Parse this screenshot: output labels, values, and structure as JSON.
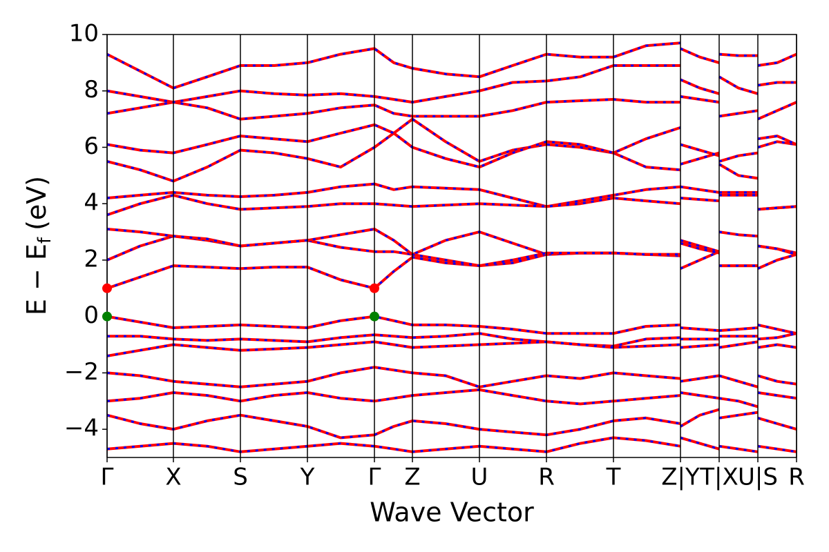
{
  "chart_data": {
    "type": "line",
    "xlabel": "Wave Vector",
    "ylabel": {
      "main": "E − E",
      "sub": "f",
      "unit": "(eV)"
    },
    "xlim": [
      0,
      9.98
    ],
    "ylim": [
      -5,
      10
    ],
    "xticks": [
      {
        "value": 0,
        "label": "Γ"
      },
      {
        "value": 0.96,
        "label": "X"
      },
      {
        "value": 1.93,
        "label": "S"
      },
      {
        "value": 2.9,
        "label": "Y"
      },
      {
        "value": 3.87,
        "label": "Γ"
      },
      {
        "value": 4.42,
        "label": "Z"
      },
      {
        "value": 5.39,
        "label": "U"
      },
      {
        "value": 6.36,
        "label": "R"
      },
      {
        "value": 7.33,
        "label": "T"
      },
      {
        "value": 8.3,
        "label": "Z|Y"
      },
      {
        "value": 8.86,
        "label": "T|X"
      },
      {
        "value": 9.42,
        "label": "U|S"
      },
      {
        "value": 9.98,
        "label": "R"
      }
    ],
    "yticks": [
      {
        "value": -4,
        "label": "−4"
      },
      {
        "value": -2,
        "label": "−2"
      },
      0,
      2,
      4,
      6,
      8,
      10
    ],
    "line_color": "#ff0000",
    "dash_color": "#0000ff",
    "vline_color": "#000000",
    "x": [
      0,
      0.48,
      0.96,
      1.45,
      1.93,
      2.42,
      2.9,
      3.38,
      3.87,
      4.15,
      4.42,
      4.9,
      5.39,
      5.87,
      6.36,
      6.85,
      7.33,
      7.8,
      8.3,
      8.3,
      8.3,
      8.58,
      8.86,
      8.86,
      8.86,
      9.14,
      9.42,
      9.42,
      9.42,
      9.7,
      9.98
    ],
    "series": [
      {
        "values": [
          0,
          -0.2,
          -0.4,
          -0.35,
          -0.3,
          -0.35,
          -0.4,
          -0.15,
          0,
          -0.15,
          -0.3,
          -0.3,
          -0.35,
          -0.45,
          -0.6,
          -0.6,
          -0.6,
          -0.35,
          -0.3,
          null,
          -0.4,
          -0.45,
          -0.5,
          null,
          -0.5,
          -0.45,
          -0.4,
          null,
          -0.3,
          -0.45,
          -0.6
        ]
      },
      {
        "values": [
          -0.7,
          -0.7,
          -0.8,
          -0.85,
          -0.8,
          -0.85,
          -0.9,
          -0.75,
          -0.65,
          -0.7,
          -0.75,
          -0.7,
          -0.6,
          -0.8,
          -0.9,
          -1.0,
          -1.05,
          -0.8,
          -0.75,
          null,
          -0.8,
          -0.8,
          -0.8,
          null,
          -0.7,
          -0.7,
          -0.7,
          null,
          -0.8,
          -0.75,
          -0.6
        ]
      },
      {
        "values": [
          -1.4,
          -1.2,
          -1.0,
          -1.1,
          -1.2,
          -1.15,
          -1.1,
          -1.0,
          -0.9,
          -1.0,
          -1.1,
          -1.05,
          -1.0,
          -0.95,
          -0.9,
          -1.0,
          -1.1,
          -1.05,
          -1.0,
          null,
          -1.1,
          -1.05,
          -1.0,
          null,
          -1.1,
          -1.0,
          -0.9,
          null,
          -1.1,
          -1.0,
          -1.1
        ]
      },
      {
        "values": [
          -2.0,
          -2.1,
          -2.3,
          -2.4,
          -2.5,
          -2.4,
          -2.3,
          -2.0,
          -1.8,
          -1.9,
          -2.0,
          -2.1,
          -2.5,
          -2.3,
          -2.1,
          -2.2,
          -2.0,
          -2.1,
          -2.2,
          null,
          -2.3,
          -2.2,
          -2.1,
          null,
          -2.1,
          -2.3,
          -2.5,
          null,
          -2.1,
          -2.3,
          -2.4
        ]
      },
      {
        "values": [
          -3.0,
          -2.9,
          -2.7,
          -2.8,
          -3.0,
          -2.8,
          -2.7,
          -2.9,
          -3.0,
          -2.9,
          -2.8,
          -2.7,
          -2.6,
          -2.8,
          -3.0,
          -3.1,
          -3.0,
          -2.9,
          -2.8,
          null,
          -2.7,
          -2.8,
          -2.9,
          null,
          -2.9,
          -3.0,
          -3.2,
          null,
          -2.7,
          -2.8,
          -2.9
        ]
      },
      {
        "values": [
          -3.5,
          -3.8,
          -4.0,
          -3.7,
          -3.5,
          -3.7,
          -3.9,
          -4.3,
          -4.2,
          -3.9,
          -3.7,
          -3.8,
          -4.0,
          -4.1,
          -4.2,
          -4.0,
          -3.7,
          -3.6,
          -3.8,
          null,
          -3.9,
          -3.5,
          -3.3,
          null,
          -3.6,
          -3.5,
          -3.4,
          null,
          -3.6,
          -3.8,
          -4.0
        ]
      },
      {
        "values": [
          -4.7,
          -4.6,
          -4.5,
          -4.6,
          -4.8,
          -4.7,
          -4.6,
          -4.5,
          -4.6,
          -4.7,
          -4.8,
          -4.7,
          -4.6,
          -4.7,
          -4.8,
          -4.5,
          -4.3,
          -4.4,
          -4.6,
          null,
          -4.3,
          -4.5,
          -4.7,
          null,
          -4.6,
          -4.7,
          -4.8,
          null,
          -4.6,
          -4.7,
          -4.8
        ]
      },
      {
        "values": [
          1.0,
          1.4,
          1.8,
          1.75,
          1.7,
          1.75,
          1.75,
          1.3,
          1.0,
          1.6,
          2.1,
          1.9,
          1.8,
          1.9,
          2.2,
          2.25,
          2.25,
          2.2,
          2.15,
          null,
          1.7,
          2.0,
          2.3,
          null,
          1.8,
          1.8,
          1.8,
          null,
          1.7,
          2.0,
          2.2
        ]
      },
      {
        "values": [
          2.0,
          2.5,
          2.85,
          2.7,
          2.5,
          2.6,
          2.7,
          2.45,
          2.3,
          2.3,
          2.2,
          2.7,
          3.0,
          2.6,
          2.2,
          2.25,
          2.25,
          2.2,
          2.2,
          null,
          2.7,
          2.5,
          2.3,
          null,
          3.0,
          2.9,
          2.85,
          null,
          2.5,
          2.4,
          2.25
        ]
      },
      {
        "values": [
          3.1,
          3.0,
          2.85,
          2.75,
          2.5,
          2.6,
          2.7,
          2.9,
          3.1,
          2.7,
          2.2,
          2.0,
          1.8,
          2.0,
          2.25,
          2.25,
          2.25,
          2.2,
          2.2,
          null,
          2.6,
          2.4,
          2.25,
          null,
          1.8,
          1.8,
          1.8,
          null,
          2.5,
          2.4,
          2.2
        ]
      },
      {
        "values": [
          4.2,
          4.3,
          4.4,
          4.3,
          4.25,
          4.3,
          4.4,
          4.6,
          4.7,
          4.5,
          4.6,
          4.55,
          4.5,
          4.2,
          3.9,
          4.1,
          4.3,
          4.5,
          4.6,
          null,
          4.6,
          4.5,
          4.4,
          null,
          4.4,
          4.4,
          4.4,
          null,
          3.8,
          3.85,
          3.9
        ]
      },
      {
        "values": [
          3.6,
          4.0,
          4.3,
          4.0,
          3.8,
          3.85,
          3.9,
          4.0,
          4.0,
          3.95,
          3.9,
          3.95,
          4.0,
          3.95,
          3.9,
          4.0,
          4.2,
          4.1,
          4.0,
          null,
          4.2,
          4.15,
          4.1,
          null,
          4.3,
          4.3,
          4.3,
          null,
          3.8,
          3.85,
          3.9
        ]
      },
      {
        "values": [
          5.5,
          5.2,
          4.8,
          5.3,
          5.9,
          5.8,
          5.6,
          5.3,
          6.0,
          6.5,
          7.0,
          6.2,
          5.5,
          5.9,
          6.1,
          6.0,
          5.8,
          5.3,
          5.2,
          null,
          5.4,
          5.6,
          5.8,
          null,
          5.5,
          5.7,
          5.8,
          null,
          6.0,
          6.2,
          6.1
        ]
      },
      {
        "values": [
          6.1,
          5.9,
          5.8,
          6.1,
          6.4,
          6.3,
          6.2,
          6.5,
          6.8,
          6.5,
          6.0,
          5.6,
          5.3,
          5.8,
          6.2,
          6.1,
          5.8,
          6.3,
          6.7,
          null,
          6.1,
          5.9,
          5.7,
          null,
          5.4,
          5.0,
          4.9,
          null,
          6.3,
          6.4,
          6.1
        ]
      },
      {
        "values": [
          7.2,
          7.4,
          7.6,
          7.4,
          7.0,
          7.1,
          7.2,
          7.4,
          7.5,
          7.2,
          7.1,
          7.1,
          7.1,
          7.3,
          7.6,
          7.65,
          7.7,
          7.6,
          7.6,
          null,
          7.8,
          7.7,
          7.6,
          null,
          7.1,
          7.2,
          7.3,
          null,
          7.0,
          7.3,
          7.6
        ]
      },
      {
        "values": [
          8.0,
          7.8,
          7.6,
          7.8,
          8.0,
          7.9,
          7.85,
          7.9,
          7.8,
          7.7,
          7.6,
          7.8,
          8.0,
          8.3,
          8.35,
          8.5,
          8.9,
          8.9,
          8.9,
          null,
          8.4,
          8.1,
          7.9,
          null,
          8.5,
          8.1,
          7.9,
          null,
          8.2,
          8.3,
          8.3
        ]
      },
      {
        "values": [
          9.3,
          8.7,
          8.1,
          8.5,
          8.9,
          8.9,
          9.0,
          9.3,
          9.5,
          9.0,
          8.8,
          8.6,
          8.5,
          8.9,
          9.3,
          9.2,
          9.2,
          9.6,
          9.7,
          null,
          9.5,
          9.2,
          9.0,
          null,
          9.3,
          9.25,
          9.25,
          null,
          8.9,
          9.0,
          9.3
        ]
      }
    ],
    "points": [
      {
        "color": "#ff0000",
        "x": [
          0,
          3.87
        ],
        "y": [
          1,
          1
        ]
      },
      {
        "color": "#008000",
        "x": [
          0,
          3.87
        ],
        "y": [
          0,
          0
        ]
      }
    ]
  }
}
